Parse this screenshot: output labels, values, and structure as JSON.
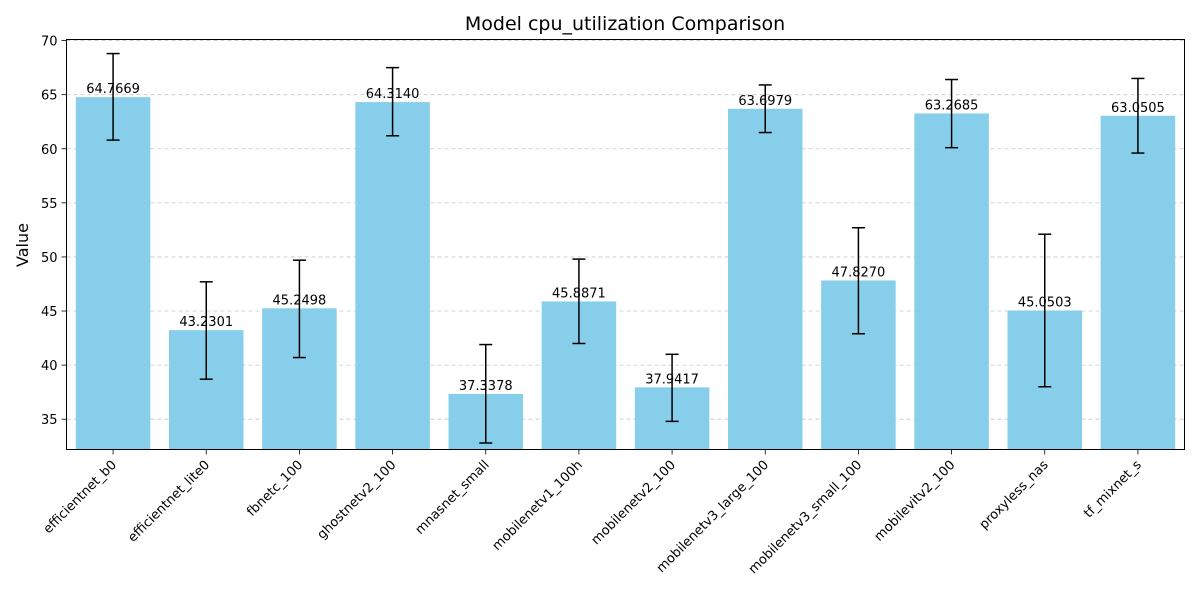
{
  "chart_data": {
    "type": "bar",
    "title": "Model cpu_utilization Comparison",
    "xlabel": "",
    "ylabel": "Value",
    "ylim": [
      32.2,
      70.1
    ],
    "yticks": [
      35,
      40,
      45,
      50,
      55,
      60,
      65,
      70
    ],
    "grid": "y-dashed",
    "bar_color": "#87ceeb",
    "categories": [
      "efficientnet_b0",
      "efficientnet_lite0",
      "fbnetc_100",
      "ghostnetv2_100",
      "mnasnet_small",
      "mobilenetv1_100h",
      "mobilenetv2_100",
      "mobilenetv3_large_100",
      "mobilenetv3_small_100",
      "mobilevitv2_100",
      "proxyless_nas",
      "tf_mixnet_s"
    ],
    "values": [
      64.7669,
      43.2301,
      45.2498,
      64.314,
      37.3378,
      45.8871,
      37.9417,
      63.6979,
      47.827,
      63.2685,
      45.0503,
      63.0505
    ],
    "value_labels": [
      "64.7669",
      "43.2301",
      "45.2498",
      "64.3140",
      "37.3378",
      "45.8871",
      "37.9417",
      "63.6979",
      "47.8270",
      "63.2685",
      "45.0503",
      "63.0505"
    ],
    "error_low": [
      60.8,
      38.7,
      40.7,
      61.2,
      32.8,
      42.0,
      34.8,
      61.5,
      42.9,
      60.1,
      38.0,
      59.6
    ],
    "error_high": [
      68.8,
      47.7,
      49.7,
      67.5,
      41.9,
      49.8,
      41.0,
      65.9,
      52.7,
      66.4,
      52.1,
      66.5
    ]
  }
}
